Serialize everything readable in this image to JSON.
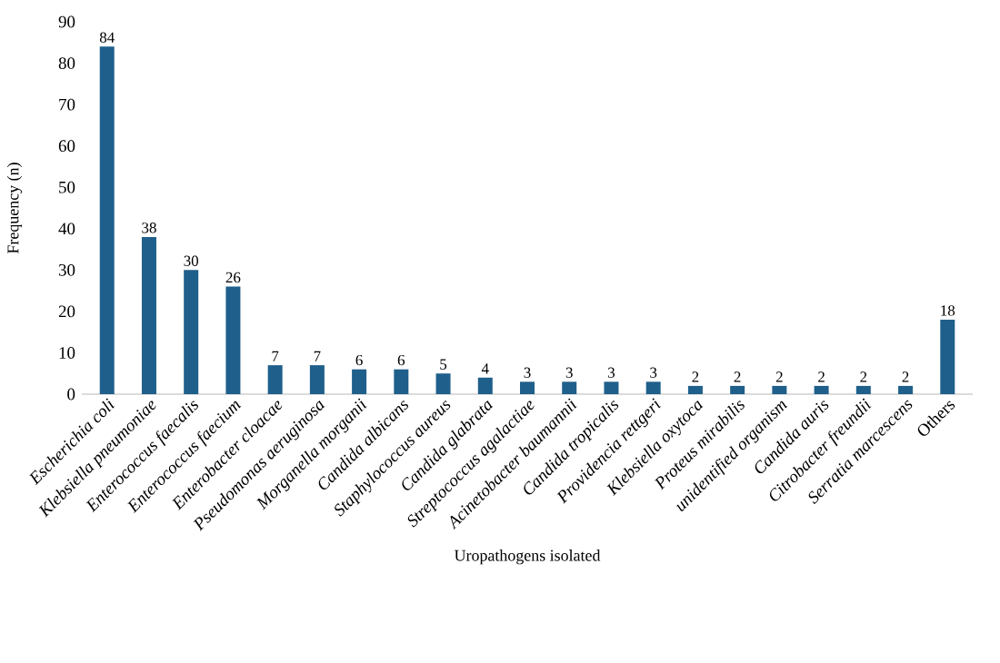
{
  "chart_data": {
    "type": "bar",
    "xlabel": "Uropathogens isolated",
    "ylabel": "Frequency (n)",
    "categories": [
      "*Escherichia coli*",
      "*Klebsiella pneumoniae*",
      "*Enterococcus faecalis*",
      "*Enterococcus faecium*",
      "*Enterobacter cloacae*",
      "*Pseudomonas aeruginosa*",
      "*Morganella morganii*",
      "*Candida albicans*",
      "*Staphylococcus aureus*",
      "*Candida glabrata*",
      "*Streptococcus agalactiae*",
      "*Acinetobacter baumannii*",
      "*Candida tropicalis*",
      "*Providencia rettgeri*",
      "*Klebsiella oxytoca*",
      "*Proteus mirabilis*",
      "*unidentified organism*",
      "*Candida auris*",
      "*Citrobacter freundii*",
      "*Serratia marcescens*",
      "Others"
    ],
    "values": [
      84,
      38,
      30,
      26,
      7,
      7,
      6,
      6,
      5,
      4,
      3,
      3,
      3,
      3,
      2,
      2,
      2,
      2,
      2,
      2,
      18
    ],
    "color": "#1f5f8b",
    "ylim": [
      0,
      90
    ],
    "yticks": [
      0,
      10,
      20,
      30,
      40,
      50,
      60,
      70,
      80,
      90
    ],
    "data_labels": true,
    "grid": false
  }
}
